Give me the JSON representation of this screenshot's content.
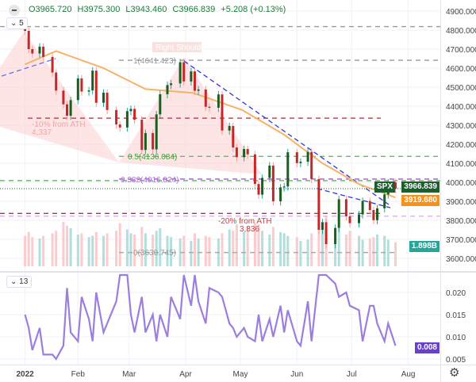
{
  "header": {
    "open": "O3965.720",
    "high": "H3975.300",
    "low": "L3943.460",
    "close": "C3966.839",
    "change": "+5.208 (+0.13%)"
  },
  "price_pane_collapse": "5",
  "indicator_pane_collapse": "13",
  "tags": {
    "symbol": "SPX",
    "last_price": "3966.839",
    "ma_value": "3919.680",
    "volume": "1.898B",
    "indicator_value": "0.008"
  },
  "colors": {
    "up": "#1b5e20",
    "down": "#c62828",
    "ma": "#f7b267",
    "indicator": "#9c7ede",
    "trend": "#2a36e8",
    "symbol_tag": "#1e5e2e",
    "ma_tag": "#f59219",
    "volume_tag": "#26a69a",
    "indicator_tag": "#6a3fd0"
  },
  "annotations": {
    "right_shoulder": "Right Shoulder",
    "ath10_line1": "-10% from ATH",
    "ath10_line2": "4,337",
    "ath20_line1": "-20% from ATH",
    "ath20_line2": "3,836",
    "fib_1": "1(4641.423)",
    "fib_05": "0.5(4136.084)",
    "fib_0382": "0.382(4016.824)",
    "fib_0": "0(3630.745)"
  },
  "chart_data": [
    {
      "type": "candlestick",
      "symbol": "SPX",
      "y_ticks": [
        4900,
        4800,
        4700,
        4600,
        4500,
        4400,
        4300,
        4200,
        4100,
        4000,
        3900,
        3800,
        3700,
        3600
      ],
      "y_tick_labels": [
        "4900.000",
        "4800.000",
        "4700.000",
        "4600.000",
        "4500.000",
        "4400.000",
        "4300.000",
        "4200.000",
        "4100.000",
        "4000.000",
        "3900.000",
        "3800.000",
        "3700.000",
        "3600.000"
      ],
      "x_tick_labels": [
        "2022",
        "Feb",
        "Mar",
        "Apr",
        "May",
        "Jun",
        "Jul",
        "Aug"
      ],
      "x_tick_dates": [
        "2022-01-03",
        "2022-02-01",
        "2022-03-01",
        "2022-04-01",
        "2022-05-01",
        "2022-06-01",
        "2022-07-01",
        "2022-08-01"
      ],
      "dates": [
        "01-03",
        "01-05",
        "01-07",
        "01-11",
        "01-13",
        "01-18",
        "01-20",
        "01-24",
        "01-26",
        "01-28",
        "02-01",
        "02-03",
        "02-07",
        "02-09",
        "02-11",
        "02-15",
        "02-17",
        "02-22",
        "02-24",
        "02-28",
        "03-02",
        "03-04",
        "03-08",
        "03-10",
        "03-14",
        "03-16",
        "03-18",
        "03-22",
        "03-24",
        "03-29",
        "03-31",
        "04-04",
        "04-06",
        "04-08",
        "04-12",
        "04-14",
        "04-19",
        "04-21",
        "04-25",
        "04-27",
        "04-29",
        "05-03",
        "05-05",
        "05-09",
        "05-11",
        "05-13",
        "05-17",
        "05-19",
        "05-23",
        "05-25",
        "05-27",
        "06-01",
        "06-03",
        "06-07",
        "06-09",
        "06-13",
        "06-15",
        "06-17",
        "06-22",
        "06-24",
        "06-28",
        "06-30",
        "07-05",
        "07-07",
        "07-11",
        "07-13",
        "07-15",
        "07-19",
        "07-21",
        "07-25"
      ],
      "close": [
        4796,
        4700,
        4677,
        4713,
        4659,
        4577,
        4482,
        4410,
        4350,
        4432,
        4546,
        4477,
        4483,
        4587,
        4418,
        4471,
        4380,
        4304,
        4288,
        4374,
        4386,
        4329,
        4170,
        4259,
        4173,
        4357,
        4463,
        4511,
        4520,
        4631,
        4530,
        4583,
        4481,
        4488,
        4397,
        4392,
        4462,
        4272,
        4296,
        4183,
        4132,
        4175,
        4147,
        3991,
        3935,
        4023,
        4088,
        3900,
        3973,
        3978,
        4158,
        4101,
        4108,
        4160,
        4017,
        3750,
        3790,
        3675,
        3760,
        3911,
        3821,
        3785,
        3831,
        3902,
        3854,
        3801,
        3863,
        3936,
        3999,
        3966
      ],
      "volume_billions": [
        2.4,
        2.7,
        2.3,
        2.2,
        2.4,
        2.6,
        2.8,
        3.5,
        3.2,
        3.0,
        2.5,
        2.6,
        2.3,
        2.4,
        2.7,
        2.4,
        2.6,
        2.8,
        3.4,
        2.9,
        2.6,
        2.5,
        3.1,
        2.6,
        2.5,
        2.8,
        3.0,
        2.4,
        2.3,
        2.2,
        2.4,
        2.0,
        2.6,
        2.2,
        2.4,
        2.3,
        2.2,
        2.6,
        2.9,
        2.8,
        3.3,
        2.7,
        3.2,
        3.4,
        3.3,
        2.8,
        2.5,
        3.1,
        2.7,
        2.6,
        2.4,
        2.3,
        2.0,
        2.1,
        2.6,
        3.8,
        3.4,
        4.0,
        2.9,
        3.0,
        2.5,
        2.8,
        2.4,
        2.1,
        2.2,
        2.3,
        2.5,
        2.4,
        2.1,
        1.9
      ],
      "moving_average": {
        "dates": [
          "01-03",
          "01-20",
          "02-15",
          "03-10",
          "04-05",
          "05-02",
          "05-25",
          "06-15",
          "07-05",
          "07-25"
        ],
        "values": [
          4620,
          4690,
          4600,
          4490,
          4470,
          4380,
          4250,
          4100,
          3990,
          3920
        ]
      },
      "horizontal_levels": [
        4818.6,
        4641.423,
        4337,
        4136.084,
        4016.824,
        3836,
        3630.745
      ]
    },
    {
      "type": "line",
      "y_tick_labels": [
        "0.020",
        "0.015",
        "0.010",
        "0.005"
      ],
      "y_ticks": [
        0.02,
        0.015,
        0.01,
        0.005
      ],
      "values": [
        0.015,
        0.012,
        0.007,
        0.012,
        0.006,
        0.006,
        0.005,
        0.008,
        0.021,
        0.011,
        0.009,
        0.019,
        0.014,
        0.009,
        0.02,
        0.011,
        0.013,
        0.018,
        0.026,
        0.03,
        0.015,
        0.011,
        0.019,
        0.011,
        0.015,
        0.009,
        0.015,
        0.01,
        0.019,
        0.014,
        0.025,
        0.017,
        0.028,
        0.018,
        0.013,
        0.021,
        0.02,
        0.019,
        0.013,
        0.012,
        0.01,
        0.012,
        0.01,
        0.009,
        0.015,
        0.009,
        0.014,
        0.01,
        0.017,
        0.011,
        0.016,
        0.009,
        0.008,
        0.018,
        0.009,
        0.027,
        0.03,
        0.025,
        0.022,
        0.019,
        0.02,
        0.017,
        0.016,
        0.009,
        0.017,
        0.017,
        0.013,
        0.009,
        0.013,
        0.008
      ]
    }
  ]
}
